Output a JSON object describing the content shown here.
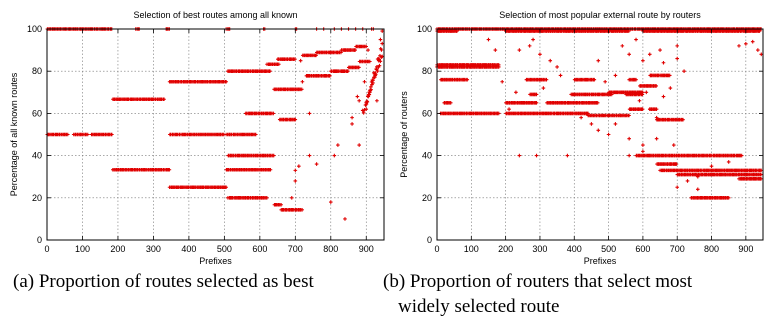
{
  "chart_data": [
    {
      "type": "scatter",
      "title": "Selection of best routes among all known",
      "xlabel": "Prefixes",
      "ylabel": "Percentage of all known routes",
      "xlim": [
        0,
        950
      ],
      "ylim": [
        0,
        100
      ],
      "xticks": [
        0,
        100,
        200,
        300,
        400,
        500,
        600,
        700,
        800,
        900
      ],
      "yticks": [
        0,
        20,
        40,
        60,
        80,
        100
      ],
      "grid": true,
      "marker_color": "#e00000",
      "point_bands": [
        {
          "y": 100,
          "x_ranges": [
            [
              0,
              185
            ],
            [
              250,
              260
            ],
            [
              335,
              345
            ],
            [
              505,
              515
            ],
            [
              610,
              615
            ],
            [
              700,
              705
            ]
          ]
        },
        {
          "y": 50,
          "x_ranges": [
            [
              0,
              60
            ],
            [
              75,
              115
            ],
            [
              125,
              185
            ],
            [
              345,
              500
            ],
            [
              505,
              590
            ]
          ]
        },
        {
          "y": 66.7,
          "x_ranges": [
            [
              185,
              330
            ]
          ]
        },
        {
          "y": 33.3,
          "x_ranges": [
            [
              185,
              345
            ],
            [
              505,
              630
            ]
          ]
        },
        {
          "y": 75,
          "x_ranges": [
            [
              345,
              505
            ]
          ]
        },
        {
          "y": 25,
          "x_ranges": [
            [
              345,
              505
            ]
          ]
        },
        {
          "y": 80,
          "x_ranges": [
            [
              510,
              630
            ]
          ]
        },
        {
          "y": 20,
          "x_ranges": [
            [
              510,
              620
            ]
          ]
        },
        {
          "y": 60,
          "x_ranges": [
            [
              560,
              640
            ]
          ]
        },
        {
          "y": 40,
          "x_ranges": [
            [
              510,
              640
            ]
          ]
        },
        {
          "y": 83.3,
          "x_ranges": [
            [
              620,
              655
            ]
          ]
        },
        {
          "y": 16.7,
          "x_ranges": [
            [
              640,
              660
            ]
          ]
        },
        {
          "y": 85.7,
          "x_ranges": [
            [
              650,
              700
            ]
          ]
        },
        {
          "y": 71.4,
          "x_ranges": [
            [
              640,
              720
            ]
          ]
        },
        {
          "y": 14.3,
          "x_ranges": [
            [
              660,
              720
            ]
          ]
        },
        {
          "y": 57.1,
          "x_ranges": [
            [
              655,
              700
            ]
          ]
        },
        {
          "y": 87.5,
          "x_ranges": [
            [
              720,
              760
            ]
          ]
        },
        {
          "y": 77.8,
          "x_ranges": [
            [
              730,
              800
            ]
          ]
        },
        {
          "y": 88.9,
          "x_ranges": [
            [
              760,
              830
            ]
          ]
        },
        {
          "y": 80,
          "x_ranges": [
            [
              800,
              850
            ]
          ]
        },
        {
          "y": 90,
          "x_ranges": [
            [
              830,
              870
            ]
          ]
        },
        {
          "y": 81.8,
          "x_ranges": [
            [
              850,
              880
            ]
          ]
        },
        {
          "y": 91.7,
          "x_ranges": [
            [
              870,
              900
            ]
          ]
        },
        {
          "y": 84.6,
          "x_ranges": [
            [
              880,
              910
            ]
          ]
        }
      ],
      "point_ramps": [
        {
          "x_range": [
            900,
            945
          ],
          "y_range": [
            65,
            92
          ]
        },
        {
          "x_range": [
            890,
            945
          ],
          "y_range": [
            60,
            88
          ]
        }
      ],
      "scatter_points": [
        [
          700,
          28
        ],
        [
          710,
          35
        ],
        [
          720,
          75
        ],
        [
          740,
          60
        ],
        [
          760,
          36
        ],
        [
          800,
          18
        ],
        [
          810,
          40
        ],
        [
          820,
          45
        ],
        [
          840,
          10
        ],
        [
          850,
          100
        ],
        [
          860,
          55
        ],
        [
          870,
          100
        ],
        [
          880,
          45
        ],
        [
          900,
          62
        ],
        [
          910,
          70
        ],
        [
          920,
          100
        ],
        [
          930,
          66
        ],
        [
          940,
          95
        ],
        [
          935,
          85
        ],
        [
          915,
          100
        ],
        [
          925,
          78
        ],
        [
          890,
          100
        ],
        [
          905,
          90
        ],
        [
          945,
          99
        ],
        [
          880,
          66
        ],
        [
          830,
          100
        ],
        [
          760,
          100
        ],
        [
          780,
          100
        ],
        [
          810,
          100
        ],
        [
          700,
          33
        ],
        [
          690,
          20
        ],
        [
          715,
          85
        ],
        [
          740,
          40
        ],
        [
          860,
          58
        ],
        [
          875,
          68
        ],
        [
          895,
          75
        ]
      ]
    },
    {
      "type": "scatter",
      "title": "Selection of most popular external route by routers",
      "xlabel": "Prefixes",
      "ylabel": "Percentage of routers",
      "xlim": [
        0,
        950
      ],
      "ylim": [
        0,
        100
      ],
      "xticks": [
        0,
        100,
        200,
        300,
        400,
        500,
        600,
        700,
        800,
        900
      ],
      "yticks": [
        0,
        20,
        40,
        60,
        80,
        100
      ],
      "grid": true,
      "marker_color": "#e00000",
      "point_bands": [
        {
          "y": 100,
          "x_ranges": [
            [
              0,
              945
            ]
          ]
        },
        {
          "y": 99,
          "x_ranges": [
            [
              0,
              60
            ],
            [
              200,
              560
            ],
            [
              600,
              940
            ]
          ]
        },
        {
          "y": 83,
          "x_ranges": [
            [
              0,
              180
            ]
          ]
        },
        {
          "y": 82,
          "x_ranges": [
            [
              0,
              180
            ]
          ]
        },
        {
          "y": 76,
          "x_ranges": [
            [
              10,
              90
            ],
            [
              260,
              320
            ],
            [
              400,
              460
            ],
            [
              560,
              580
            ]
          ]
        },
        {
          "y": 78,
          "x_ranges": [
            [
              620,
              680
            ]
          ]
        },
        {
          "y": 73,
          "x_ranges": [
            [
              590,
              640
            ]
          ]
        },
        {
          "y": 69,
          "x_ranges": [
            [
              270,
              290
            ],
            [
              390,
              510
            ],
            [
              550,
              600
            ]
          ]
        },
        {
          "y": 70,
          "x_ranges": [
            [
              500,
              600
            ]
          ]
        },
        {
          "y": 65,
          "x_ranges": [
            [
              20,
              40
            ],
            [
              200,
              290
            ],
            [
              320,
              470
            ]
          ]
        },
        {
          "y": 62,
          "x_ranges": [
            [
              560,
              600
            ],
            [
              620,
              640
            ]
          ]
        },
        {
          "y": 60,
          "x_ranges": [
            [
              10,
              180
            ],
            [
              200,
              440
            ]
          ]
        },
        {
          "y": 59,
          "x_ranges": [
            [
              440,
              560
            ]
          ]
        },
        {
          "y": 57,
          "x_ranges": [
            [
              640,
              720
            ]
          ]
        },
        {
          "y": 40,
          "x_ranges": [
            [
              580,
              890
            ]
          ]
        },
        {
          "y": 36,
          "x_ranges": [
            [
              640,
              700
            ]
          ]
        },
        {
          "y": 33,
          "x_ranges": [
            [
              650,
              945
            ]
          ]
        },
        {
          "y": 31,
          "x_ranges": [
            [
              700,
              945
            ]
          ]
        },
        {
          "y": 29,
          "x_ranges": [
            [
              880,
              945
            ]
          ]
        },
        {
          "y": 20,
          "x_ranges": [
            [
              740,
              850
            ]
          ]
        }
      ],
      "point_ramps": [],
      "scatter_points": [
        [
          240,
          40
        ],
        [
          290,
          40
        ],
        [
          380,
          40
        ],
        [
          560,
          40
        ],
        [
          450,
          55
        ],
        [
          470,
          52
        ],
        [
          500,
          50
        ],
        [
          520,
          55
        ],
        [
          420,
          58
        ],
        [
          600,
          85
        ],
        [
          620,
          88
        ],
        [
          650,
          90
        ],
        [
          660,
          84
        ],
        [
          700,
          86
        ],
        [
          720,
          80
        ],
        [
          700,
          92
        ],
        [
          580,
          95
        ],
        [
          540,
          92
        ],
        [
          560,
          88
        ],
        [
          470,
          85
        ],
        [
          520,
          78
        ],
        [
          490,
          75
        ],
        [
          330,
          85
        ],
        [
          350,
          82
        ],
        [
          300,
          88
        ],
        [
          270,
          92
        ],
        [
          280,
          95
        ],
        [
          240,
          90
        ],
        [
          560,
          48
        ],
        [
          600,
          45
        ],
        [
          640,
          48
        ],
        [
          690,
          45
        ],
        [
          760,
          24
        ],
        [
          880,
          92
        ],
        [
          900,
          93
        ],
        [
          920,
          94
        ],
        [
          935,
          90
        ],
        [
          945,
          88
        ],
        [
          190,
          75
        ],
        [
          210,
          62
        ],
        [
          800,
          35
        ],
        [
          850,
          37
        ],
        [
          700,
          25
        ],
        [
          730,
          28
        ],
        [
          760,
          30
        ],
        [
          620,
          62
        ],
        [
          640,
          58
        ],
        [
          590,
          66
        ],
        [
          610,
          70
        ],
        [
          660,
          68
        ],
        [
          680,
          72
        ],
        [
          150,
          95
        ],
        [
          170,
          90
        ],
        [
          230,
          70
        ],
        [
          310,
          72
        ],
        [
          360,
          78
        ],
        [
          600,
          42
        ]
      ]
    }
  ],
  "captions": {
    "a": "(a) Proportion of routes selected as best",
    "b_line1": "(b) Proportion of routers that select most",
    "b_line2": "widely selected route"
  }
}
